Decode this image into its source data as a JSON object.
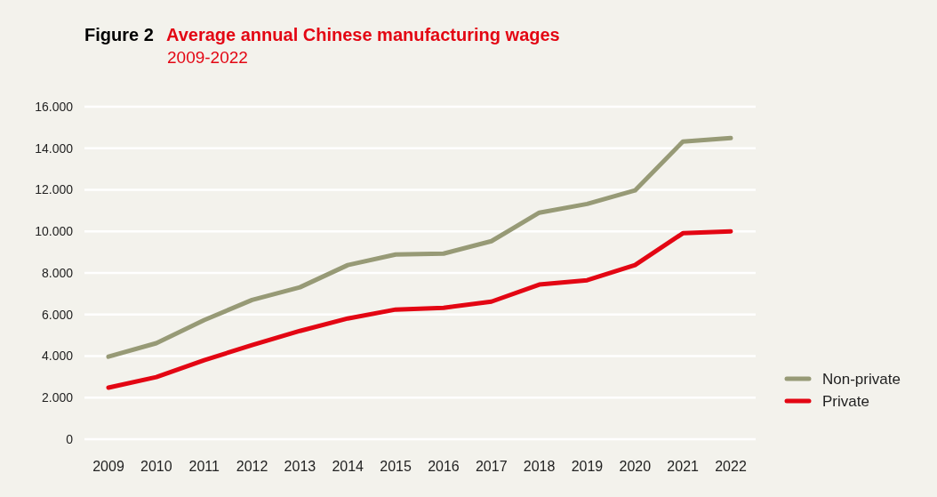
{
  "chart_data": {
    "type": "line",
    "title": "Average annual Chinese manufacturing wages",
    "subtitle": "2009-2022",
    "annotations": [
      "Figure 2"
    ],
    "categories": [
      "2009",
      "2010",
      "2011",
      "2012",
      "2013",
      "2014",
      "2015",
      "2016",
      "2017",
      "2018",
      "2019",
      "2020",
      "2021",
      "2022"
    ],
    "series": [
      {
        "name": "Non-private",
        "color": "#979a76",
        "values": [
          3970,
          4620,
          5730,
          6700,
          7310,
          8380,
          8890,
          8930,
          9530,
          10900,
          11320,
          11970,
          14320,
          14490
        ]
      },
      {
        "name": "Private",
        "color": "#e30613",
        "values": [
          2480,
          2990,
          3800,
          4530,
          5210,
          5810,
          6240,
          6320,
          6620,
          7440,
          7650,
          8380,
          9910,
          10000
        ]
      }
    ],
    "ylim": [
      0,
      16000
    ],
    "yticks": [
      0,
      {
        "value": 2000,
        "label": "2.000"
      },
      {
        "value": 4000,
        "label": "4.000"
      },
      {
        "value": 6000,
        "label": "6.000"
      },
      {
        "value": 8000,
        "label": "8.000"
      },
      {
        "value": 10000,
        "label": "10.000"
      },
      {
        "value": 12000,
        "label": "12.000"
      },
      {
        "value": 14000,
        "label": "14.000"
      },
      {
        "value": 16000,
        "label": "16.000"
      }
    ],
    "grid": "y",
    "legend": "right",
    "marker": "none",
    "line_style": "solid"
  }
}
